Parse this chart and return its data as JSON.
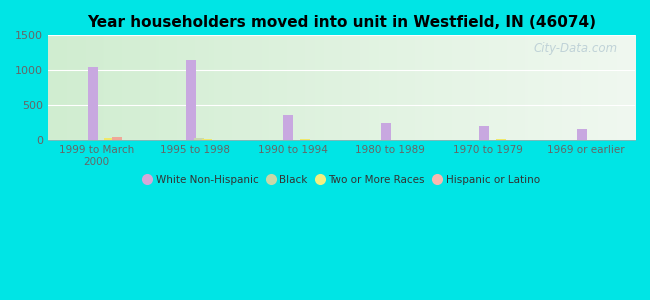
{
  "title": "Year householders moved into unit in Westfield, IN (46074)",
  "categories": [
    "1999 to March\n2000",
    "1995 to 1998",
    "1990 to 1994",
    "1980 to 1989",
    "1970 to 1979",
    "1969 or earlier"
  ],
  "series": {
    "White Non-Hispanic": [
      1050,
      1140,
      355,
      245,
      195,
      155
    ],
    "Black": [
      0,
      28,
      0,
      0,
      0,
      0
    ],
    "Two or More Races": [
      28,
      18,
      18,
      0,
      12,
      0
    ],
    "Hispanic or Latino": [
      50,
      0,
      0,
      0,
      0,
      0
    ]
  },
  "colors": {
    "White Non-Hispanic": "#c8a8e0",
    "Black": "#c8d8b0",
    "Two or More Races": "#f0e868",
    "Hispanic or Latino": "#f0a898"
  },
  "legend_colors": {
    "White Non-Hispanic": "#d4a8d8",
    "Black": "#c8d8a8",
    "Two or More Races": "#f0f080",
    "Hispanic or Latino": "#f8b8b0"
  },
  "ylim": [
    0,
    1500
  ],
  "yticks": [
    0,
    500,
    1000,
    1500
  ],
  "bg_outer": "#00e5e5",
  "bg_plot_left": "#d0edd0",
  "bg_plot_right": "#f0f8f0",
  "watermark": "City-Data.com",
  "bar_width": 0.12
}
